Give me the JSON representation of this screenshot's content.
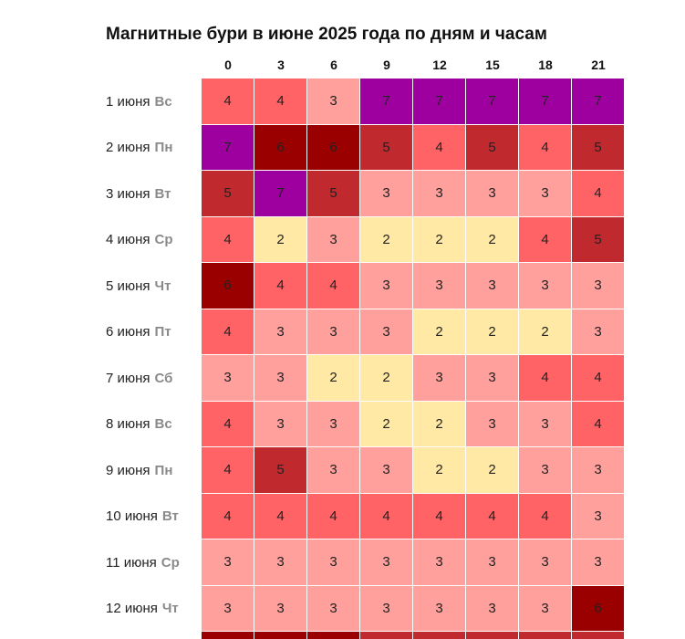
{
  "title": "Магнитные бури в июне 2025 года по дням и часам",
  "hours": [
    "0",
    "3",
    "6",
    "9",
    "12",
    "15",
    "18",
    "21"
  ],
  "level_colors": {
    "2": "#ffe9a5",
    "3": "#ffa09c",
    "4": "#ff6366",
    "5": "#c02a2e",
    "6": "#9a0000",
    "7": "#9e00a0"
  },
  "rows": [
    {
      "date": "1 июня",
      "dow": "Вс",
      "values": [
        "4",
        "4",
        "3",
        "7",
        "7",
        "7",
        "7",
        "7"
      ]
    },
    {
      "date": "2 июня",
      "dow": "Пн",
      "values": [
        "7",
        "6",
        "6",
        "5",
        "4",
        "5",
        "4",
        "5"
      ]
    },
    {
      "date": "3 июня",
      "dow": "Вт",
      "values": [
        "5",
        "7",
        "5",
        "3",
        "3",
        "3",
        "3",
        "4"
      ]
    },
    {
      "date": "4 июня",
      "dow": "Ср",
      "values": [
        "4",
        "2",
        "3",
        "2",
        "2",
        "2",
        "4",
        "5"
      ]
    },
    {
      "date": "5 июня",
      "dow": "Чт",
      "values": [
        "6",
        "4",
        "4",
        "3",
        "3",
        "3",
        "3",
        "3"
      ]
    },
    {
      "date": "6 июня",
      "dow": "Пт",
      "values": [
        "4",
        "3",
        "3",
        "3",
        "2",
        "2",
        "2",
        "3"
      ]
    },
    {
      "date": "7 июня",
      "dow": "Сб",
      "values": [
        "3",
        "3",
        "2",
        "2",
        "3",
        "3",
        "4",
        "4"
      ]
    },
    {
      "date": "8 июня",
      "dow": "Вс",
      "values": [
        "4",
        "3",
        "3",
        "2",
        "2",
        "3",
        "3",
        "4"
      ]
    },
    {
      "date": "9 июня",
      "dow": "Пн",
      "values": [
        "4",
        "5",
        "3",
        "3",
        "2",
        "2",
        "3",
        "3"
      ]
    },
    {
      "date": "10 июня",
      "dow": "Вт",
      "values": [
        "4",
        "4",
        "4",
        "4",
        "4",
        "4",
        "4",
        "3"
      ]
    },
    {
      "date": "11 июня",
      "dow": "Ср",
      "values": [
        "3",
        "3",
        "3",
        "3",
        "3",
        "3",
        "3",
        "3"
      ]
    },
    {
      "date": "12 июня",
      "dow": "Чт",
      "values": [
        "3",
        "3",
        "3",
        "3",
        "3",
        "3",
        "3",
        "6"
      ]
    }
  ]
}
